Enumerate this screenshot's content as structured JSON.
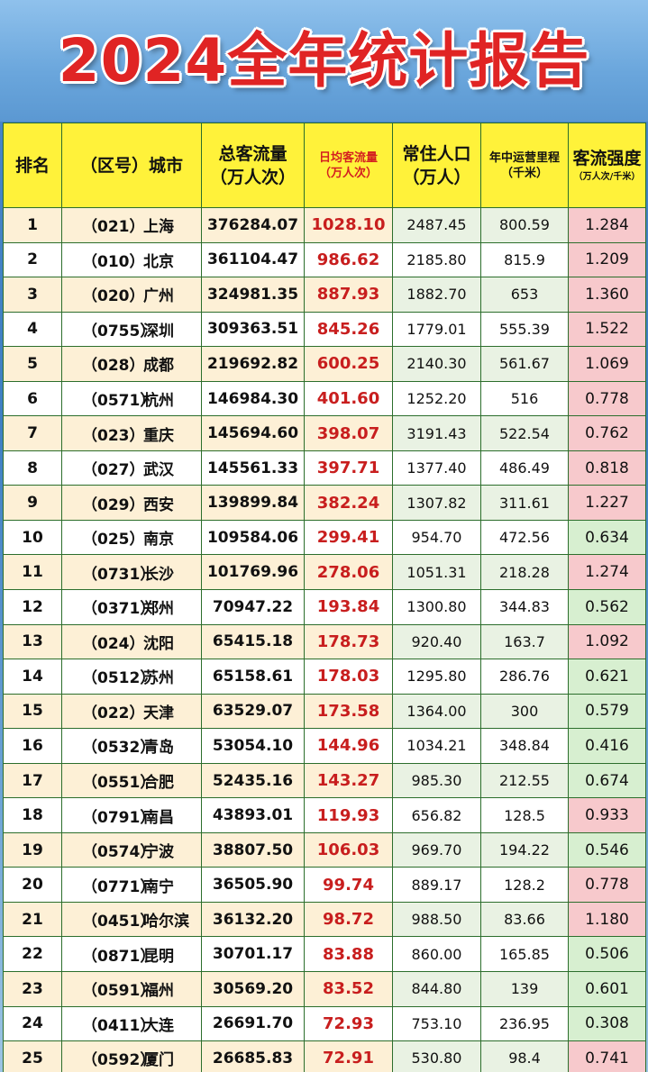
{
  "title": "2024全年统计报告",
  "headers": {
    "rank": "排名",
    "city": "（区号）城市",
    "total_main": "总客流量",
    "total_sub": "（万人次）",
    "daily_main": "日均客流量",
    "daily_sub": "（万人次）",
    "pop_main": "常住人口",
    "pop_sub": "（万人）",
    "mile_main": "年中运营里程",
    "mile_sub": "（千米）",
    "int_main": "客流强度",
    "int_sub": "（万人次/千米）"
  },
  "colors": {
    "high_intensity_bg": "#f7c9cc",
    "low_intensity_bg": "#d7efd0",
    "header_bg": "#fff23a",
    "title_red": "#e02424"
  },
  "rows": [
    {
      "rank": "1",
      "area": "（021）",
      "city": "上海",
      "total": "376284.07",
      "daily": "1028.10",
      "pop": "2487.45",
      "mile": "800.59",
      "int": "1.284",
      "level": "high"
    },
    {
      "rank": "2",
      "area": "（010）",
      "city": "北京",
      "total": "361104.47",
      "daily": "986.62",
      "pop": "2185.80",
      "mile": "815.9",
      "int": "1.209",
      "level": "high"
    },
    {
      "rank": "3",
      "area": "（020）",
      "city": "广州",
      "total": "324981.35",
      "daily": "887.93",
      "pop": "1882.70",
      "mile": "653",
      "int": "1.360",
      "level": "high"
    },
    {
      "rank": "4",
      "area": "（0755）",
      "city": "深圳",
      "total": "309363.51",
      "daily": "845.26",
      "pop": "1779.01",
      "mile": "555.39",
      "int": "1.522",
      "level": "high"
    },
    {
      "rank": "5",
      "area": "（028）",
      "city": "成都",
      "total": "219692.82",
      "daily": "600.25",
      "pop": "2140.30",
      "mile": "561.67",
      "int": "1.069",
      "level": "high"
    },
    {
      "rank": "6",
      "area": "（0571）",
      "city": "杭州",
      "total": "146984.30",
      "daily": "401.60",
      "pop": "1252.20",
      "mile": "516",
      "int": "0.778",
      "level": "high"
    },
    {
      "rank": "7",
      "area": "（023）",
      "city": "重庆",
      "total": "145694.60",
      "daily": "398.07",
      "pop": "3191.43",
      "mile": "522.54",
      "int": "0.762",
      "level": "high"
    },
    {
      "rank": "8",
      "area": "（027）",
      "city": "武汉",
      "total": "145561.33",
      "daily": "397.71",
      "pop": "1377.40",
      "mile": "486.49",
      "int": "0.818",
      "level": "high"
    },
    {
      "rank": "9",
      "area": "（029）",
      "city": "西安",
      "total": "139899.84",
      "daily": "382.24",
      "pop": "1307.82",
      "mile": "311.61",
      "int": "1.227",
      "level": "high"
    },
    {
      "rank": "10",
      "area": "（025）",
      "city": "南京",
      "total": "109584.06",
      "daily": "299.41",
      "pop": "954.70",
      "mile": "472.56",
      "int": "0.634",
      "level": "low"
    },
    {
      "rank": "11",
      "area": "（0731）",
      "city": "长沙",
      "total": "101769.96",
      "daily": "278.06",
      "pop": "1051.31",
      "mile": "218.28",
      "int": "1.274",
      "level": "high"
    },
    {
      "rank": "12",
      "area": "（0371）",
      "city": "郑州",
      "total": "70947.22",
      "daily": "193.84",
      "pop": "1300.80",
      "mile": "344.83",
      "int": "0.562",
      "level": "low"
    },
    {
      "rank": "13",
      "area": "（024）",
      "city": "沈阳",
      "total": "65415.18",
      "daily": "178.73",
      "pop": "920.40",
      "mile": "163.7",
      "int": "1.092",
      "level": "high"
    },
    {
      "rank": "14",
      "area": "（0512）",
      "city": "苏州",
      "total": "65158.61",
      "daily": "178.03",
      "pop": "1295.80",
      "mile": "286.76",
      "int": "0.621",
      "level": "low"
    },
    {
      "rank": "15",
      "area": "（022）",
      "city": "天津",
      "total": "63529.07",
      "daily": "173.58",
      "pop": "1364.00",
      "mile": "300",
      "int": "0.579",
      "level": "low"
    },
    {
      "rank": "16",
      "area": "（0532）",
      "city": "青岛",
      "total": "53054.10",
      "daily": "144.96",
      "pop": "1034.21",
      "mile": "348.84",
      "int": "0.416",
      "level": "low"
    },
    {
      "rank": "17",
      "area": "（0551）",
      "city": "合肥",
      "total": "52435.16",
      "daily": "143.27",
      "pop": "985.30",
      "mile": "212.55",
      "int": "0.674",
      "level": "low"
    },
    {
      "rank": "18",
      "area": "（0791）",
      "city": "南昌",
      "total": "43893.01",
      "daily": "119.93",
      "pop": "656.82",
      "mile": "128.5",
      "int": "0.933",
      "level": "high"
    },
    {
      "rank": "19",
      "area": "（0574）",
      "city": "宁波",
      "total": "38807.50",
      "daily": "106.03",
      "pop": "969.70",
      "mile": "194.22",
      "int": "0.546",
      "level": "low"
    },
    {
      "rank": "20",
      "area": "（0771）",
      "city": "南宁",
      "total": "36505.90",
      "daily": "99.74",
      "pop": "889.17",
      "mile": "128.2",
      "int": "0.778",
      "level": "high"
    },
    {
      "rank": "21",
      "area": "（0451）",
      "city": "哈尔滨",
      "total": "36132.20",
      "daily": "98.72",
      "pop": "988.50",
      "mile": "83.66",
      "int": "1.180",
      "level": "high"
    },
    {
      "rank": "22",
      "area": "（0871）",
      "city": "昆明",
      "total": "30701.17",
      "daily": "83.88",
      "pop": "860.00",
      "mile": "165.85",
      "int": "0.506",
      "level": "low"
    },
    {
      "rank": "23",
      "area": "（0591）",
      "city": "福州",
      "total": "30569.20",
      "daily": "83.52",
      "pop": "844.80",
      "mile": "139",
      "int": "0.601",
      "level": "low"
    },
    {
      "rank": "24",
      "area": "（0411）",
      "city": "大连",
      "total": "26691.70",
      "daily": "72.93",
      "pop": "753.10",
      "mile": "236.95",
      "int": "0.308",
      "level": "low"
    },
    {
      "rank": "25",
      "area": "（0592）",
      "city": "厦门",
      "total": "26685.83",
      "daily": "72.91",
      "pop": "530.80",
      "mile": "98.4",
      "int": "0.741",
      "level": "high"
    }
  ]
}
